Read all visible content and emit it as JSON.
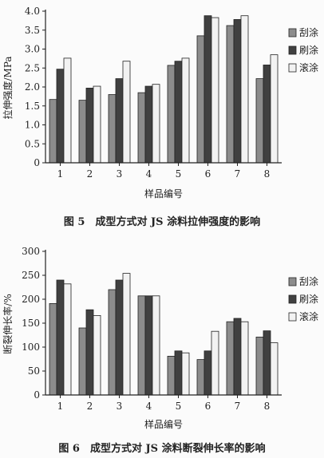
{
  "chart_data": [
    {
      "type": "bar",
      "caption": "图 5　成型方式对 JS 涂料拉伸强度的影响",
      "xlabel": "样品编号",
      "ylabel": "拉伸强度/MPa",
      "categories": [
        "1",
        "2",
        "3",
        "4",
        "5",
        "6",
        "7",
        "8"
      ],
      "ylim": [
        0,
        4.0
      ],
      "yticks": [
        "0",
        "0.5",
        "1.0",
        "1.5",
        "2.0",
        "2.5",
        "3.0",
        "3.5",
        "4.0"
      ],
      "legend_position": "right",
      "series": [
        {
          "name": "刮涂",
          "color": "#8c8c8c",
          "values": [
            1.67,
            1.65,
            1.8,
            1.85,
            2.57,
            3.35,
            3.62,
            2.22
          ]
        },
        {
          "name": "刷涂",
          "color": "#404040",
          "values": [
            2.47,
            1.97,
            2.22,
            2.02,
            2.68,
            3.88,
            3.78,
            2.58
          ]
        },
        {
          "name": "滚涂",
          "color": "#f2f2f2",
          "values": [
            2.76,
            2.02,
            2.68,
            2.07,
            2.76,
            3.83,
            3.88,
            2.85
          ]
        }
      ]
    },
    {
      "type": "bar",
      "caption": "图 6　成型方式对 JS 涂料断裂伸长率的影响",
      "xlabel": "样品编号",
      "ylabel": "断裂伸长率/%",
      "categories": [
        "1",
        "2",
        "3",
        "4",
        "5",
        "6",
        "7",
        "8"
      ],
      "ylim": [
        0,
        300
      ],
      "yticks": [
        "0",
        "50",
        "100",
        "150",
        "200",
        "250",
        "300"
      ],
      "legend_position": "right",
      "series": [
        {
          "name": "刮涂",
          "color": "#8c8c8c",
          "values": [
            191,
            140,
            220,
            207,
            81,
            74,
            153,
            121
          ]
        },
        {
          "name": "刷涂",
          "color": "#404040",
          "values": [
            240,
            178,
            240,
            207,
            92,
            92,
            160,
            134
          ]
        },
        {
          "name": "滚涂",
          "color": "#f2f2f2",
          "values": [
            232,
            166,
            254,
            207,
            88,
            133,
            153,
            109
          ]
        }
      ]
    }
  ]
}
